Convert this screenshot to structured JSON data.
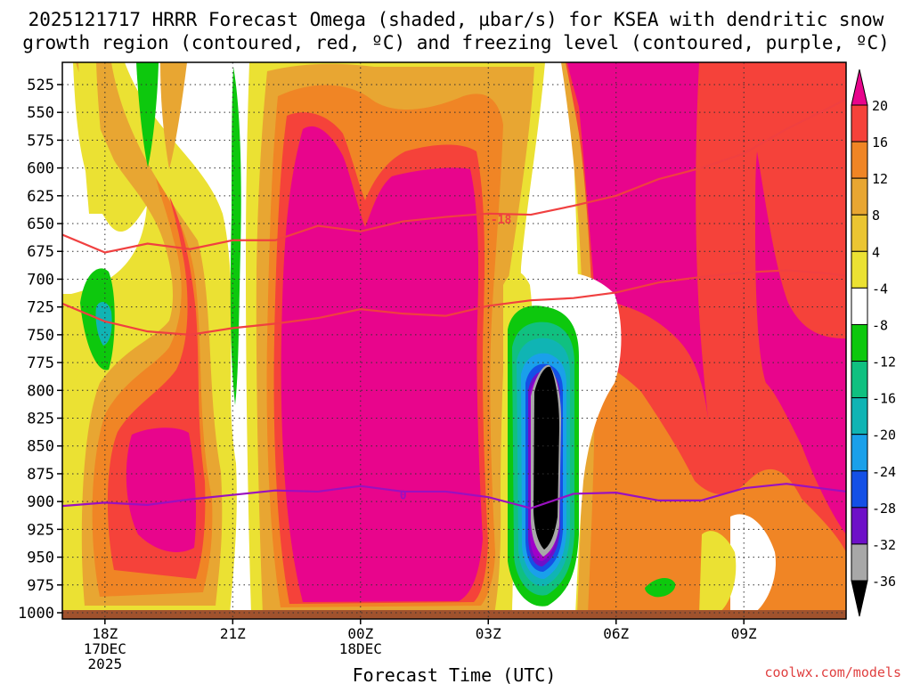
{
  "title": {
    "line1": "2025121717 HRRR Forecast Omega (shaded, µbar/s) for KSEA with dendritic snow",
    "line2": "growth region (contoured, red, ºC) and freezing level (contoured, purple, ºC)"
  },
  "credit": "coolwx.com/models",
  "colors": {
    "magenta": "#e8058c",
    "red": "#f5423a",
    "orange": "#f08525",
    "lightorange": "#e8a632",
    "gold": "#ebc532",
    "yellow": "#ebe133",
    "white": "#ffffff",
    "green": "#0dc80d",
    "teal": "#10c080",
    "cyan": "#10b4b4",
    "lightblue": "#1aa0ea",
    "blue": "#1450e6",
    "darkblue": "#2828c8",
    "violet": "#6e10c8",
    "purple": "#a000c8",
    "gray": "#a8a8a8",
    "black": "#000000",
    "snow_contour": "#f04040",
    "freezing_contour": "#9a10c0",
    "ground": "#a0522d"
  },
  "chart_data": {
    "type": "heatmap",
    "title": "2025121717 HRRR Forecast Omega (shaded, µbar/s) for KSEA",
    "xlabel": "Forecast Time (UTC)",
    "ylabel": "",
    "x_ticks": [
      {
        "hours": 1,
        "lines": [
          "18Z",
          "17DEC",
          "2025"
        ]
      },
      {
        "hours": 4,
        "lines": [
          "21Z"
        ]
      },
      {
        "hours": 7,
        "lines": [
          "00Z",
          "18DEC"
        ]
      },
      {
        "hours": 10,
        "lines": [
          "03Z"
        ]
      },
      {
        "hours": 13,
        "lines": [
          "06Z"
        ]
      },
      {
        "hours": 16,
        "lines": [
          "09Z"
        ]
      }
    ],
    "xlim": [
      0,
      18.4
    ],
    "y_ticks": [
      525,
      550,
      575,
      600,
      625,
      650,
      675,
      700,
      725,
      750,
      775,
      800,
      825,
      850,
      875,
      900,
      925,
      950,
      975,
      1000
    ],
    "ylim": [
      505,
      1000
    ],
    "colorbar": {
      "labels": [
        20,
        16,
        12,
        8,
        4,
        -4,
        -8,
        -12,
        -16,
        -20,
        -24,
        -28,
        -32,
        -36
      ],
      "levels": [
        20,
        16,
        12,
        8,
        4,
        -4,
        -8,
        -12,
        -16,
        -20,
        -24,
        -28,
        -32,
        -36
      ]
    },
    "contours": [
      {
        "name": "dendritic growth -18 C",
        "label": "-18",
        "label_at": [
          10.3,
          646
        ],
        "points": [
          [
            0,
            660
          ],
          [
            1,
            676
          ],
          [
            2,
            668
          ],
          [
            3,
            673
          ],
          [
            4,
            665
          ],
          [
            5,
            665
          ],
          [
            6,
            652
          ],
          [
            7,
            657
          ],
          [
            8,
            648
          ],
          [
            9,
            644
          ],
          [
            10,
            641
          ],
          [
            11,
            642
          ],
          [
            12,
            634
          ],
          [
            13,
            625
          ],
          [
            14,
            610
          ],
          [
            15,
            600
          ],
          [
            16,
            587
          ],
          [
            17,
            565
          ],
          [
            18,
            546
          ],
          [
            18.4,
            538
          ]
        ]
      },
      {
        "name": "dendritic growth -12 C",
        "label": "",
        "points": [
          [
            0,
            722
          ],
          [
            1,
            738
          ],
          [
            2,
            747
          ],
          [
            3,
            750
          ],
          [
            4,
            744
          ],
          [
            5,
            740
          ],
          [
            6,
            735
          ],
          [
            7,
            727
          ],
          [
            8,
            731
          ],
          [
            9,
            733
          ],
          [
            10,
            724
          ],
          [
            11,
            719
          ],
          [
            12,
            717
          ],
          [
            13,
            712
          ],
          [
            14,
            703
          ],
          [
            15,
            698
          ],
          [
            16,
            694
          ],
          [
            17,
            692
          ],
          [
            18,
            695
          ],
          [
            18.4,
            697
          ]
        ]
      },
      {
        "name": "freezing level 0 C",
        "label": "0",
        "label_at": [
          8.0,
          894
        ],
        "points": [
          [
            0,
            904
          ],
          [
            1,
            901
          ],
          [
            2,
            903
          ],
          [
            3,
            898
          ],
          [
            4,
            894
          ],
          [
            5,
            890
          ],
          [
            6,
            891
          ],
          [
            7,
            886
          ],
          [
            8,
            891
          ],
          [
            9,
            891
          ],
          [
            10,
            896
          ],
          [
            11,
            906
          ],
          [
            12,
            893
          ],
          [
            13,
            892
          ],
          [
            14,
            899
          ],
          [
            15,
            899
          ],
          [
            16,
            888
          ],
          [
            17,
            884
          ],
          [
            18,
            889
          ],
          [
            18.4,
            891
          ]
        ]
      }
    ]
  }
}
